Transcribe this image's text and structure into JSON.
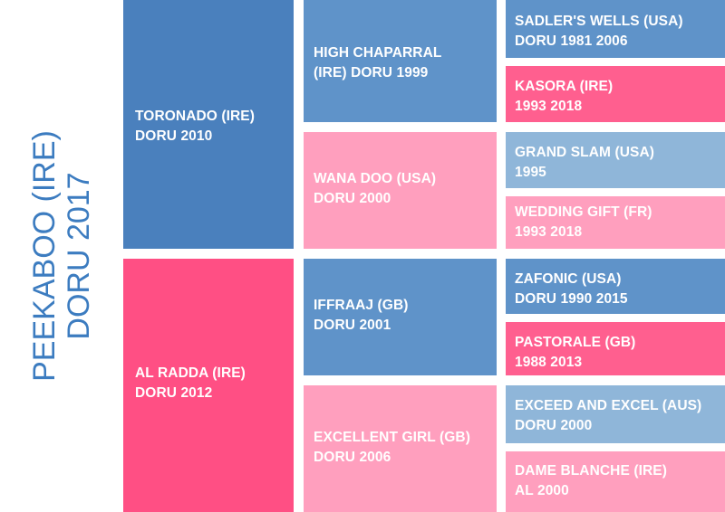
{
  "subject": {
    "name": "PEEKABOO (IRE)",
    "info": "DORU 2017"
  },
  "colors": {
    "title": "#3c7cc0",
    "sire_dark": "#4a80bd",
    "dam_dark": "#ff4f84",
    "sire_mid": "#5f93c9",
    "dam_light": "#ff9fbe",
    "dam_mid": "#ff5f8f",
    "sire_light": "#8fb6d9"
  },
  "generation1": [
    {
      "name": "TORONADO (IRE)",
      "info": "DORU 2010"
    },
    {
      "name": "AL RADDA (IRE)",
      "info": "DORU 2012"
    }
  ],
  "generation2": [
    {
      "name": "HIGH CHAPARRAL",
      "info": "(IRE) DORU 1999"
    },
    {
      "name": "WANA DOO (USA)",
      "info": "DORU 2000"
    },
    {
      "name": "IFFRAAJ (GB)",
      "info": "DORU 2001"
    },
    {
      "name": "EXCELLENT GIRL (GB)",
      "info": "DORU 2006"
    }
  ],
  "generation3": [
    {
      "name": "SADLER'S WELLS (USA)",
      "info": "DORU 1981 2006"
    },
    {
      "name": "KASORA (IRE)",
      "info": "1993 2018"
    },
    {
      "name": "GRAND SLAM (USA)",
      "info": "1995"
    },
    {
      "name": "WEDDING GIFT (FR)",
      "info": "1993 2018"
    },
    {
      "name": "ZAFONIC (USA)",
      "info": "DORU 1990 2015"
    },
    {
      "name": "PASTORALE (GB)",
      "info": "1988 2013"
    },
    {
      "name": "EXCEED AND EXCEL (AUS)",
      "info": "DORU 2000"
    },
    {
      "name": "DAME BLANCHE (IRE)",
      "info": "AL 2000"
    }
  ]
}
